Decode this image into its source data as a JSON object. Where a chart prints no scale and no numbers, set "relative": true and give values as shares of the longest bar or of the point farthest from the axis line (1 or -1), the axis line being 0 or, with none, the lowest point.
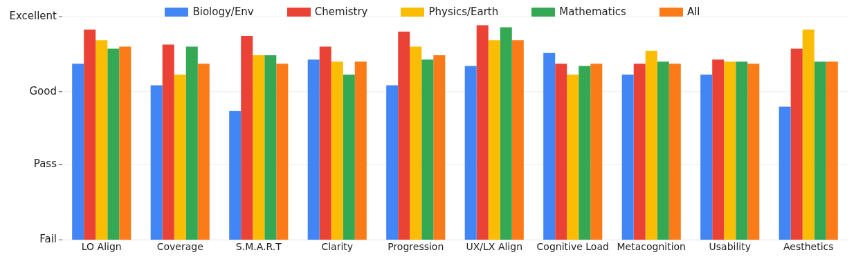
{
  "chart_data": {
    "type": "bar",
    "categories": [
      "LO Align",
      "Coverage",
      "S.M.A.R.T",
      "Clarity",
      "Progression",
      "UX/LX Align",
      "Cognitive Load",
      "Metacognition",
      "Usability",
      "Aesthetics"
    ],
    "relative": true,
    "series": [
      {
        "name": "Biology/Env",
        "color": "#4285f4",
        "values": [
          0.82,
          0.72,
          0.6,
          0.84,
          0.72,
          0.81,
          0.87,
          0.77,
          0.77,
          0.62
        ]
      },
      {
        "name": "Chemistry",
        "color": "#ea4335",
        "values": [
          0.98,
          0.91,
          0.95,
          0.9,
          0.97,
          1,
          0.82,
          0.82,
          0.84,
          0.89
        ]
      },
      {
        "name": "Physics/Earth",
        "color": "#fbbc04",
        "values": [
          0.93,
          0.77,
          0.86,
          0.83,
          0.9,
          0.93,
          0.77,
          0.88,
          0.83,
          0.98
        ]
      },
      {
        "name": "Mathematics",
        "color": "#34a853",
        "values": [
          0.89,
          0.9,
          0.86,
          0.77,
          0.84,
          0.99,
          0.81,
          0.83,
          0.83,
          0.83
        ]
      },
      {
        "name": "All",
        "color": "#fa7b17",
        "values": [
          0.9,
          0.82,
          0.82,
          0.83,
          0.86,
          0.93,
          0.82,
          0.82,
          0.82,
          0.83
        ]
      }
    ],
    "ref_lines": [
      {
        "axis": "y",
        "value": 0,
        "label": "Fail",
        "color": "#eeeeee"
      },
      {
        "axis": "y",
        "value": 0.35,
        "label": "Pass",
        "color": "#eeeeee"
      },
      {
        "axis": "y",
        "value": 0.69,
        "label": "Good",
        "color": "#eeeeee"
      },
      {
        "axis": "y",
        "value": 1.04,
        "label": "Excellent",
        "color": "#eeeeee"
      }
    ],
    "legend": "top"
  }
}
